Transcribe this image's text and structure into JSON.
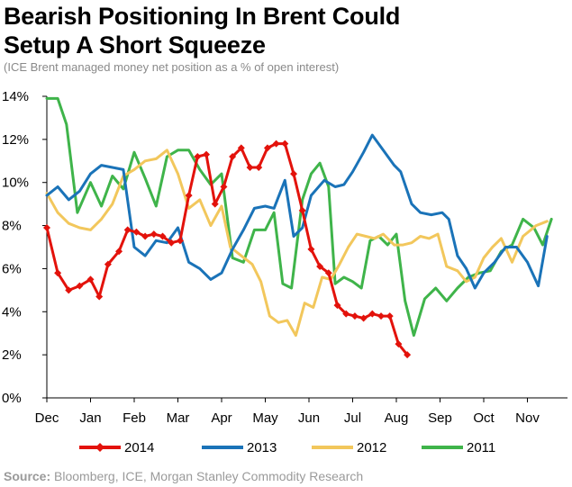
{
  "title_line1": "Bearish Positioning In Brent Could",
  "title_line2": "Setup A Short Squeeze",
  "subtitle": "(ICE Brent managed money net position as a % of open interest)",
  "source_label": "Source:",
  "source_text": " Bloomberg, ICE, Morgan Stanley Commodity Research",
  "chart_data": {
    "type": "line",
    "x_ticks": [
      "Dec",
      "Jan",
      "Feb",
      "Mar",
      "Apr",
      "May",
      "Jun",
      "Jul",
      "Aug",
      "Sep",
      "Oct",
      "Nov"
    ],
    "y_ticks": [
      "0%",
      "2%",
      "4%",
      "6%",
      "8%",
      "10%",
      "12%",
      "14%"
    ],
    "ylim": [
      0,
      14
    ],
    "grid": false,
    "legend_position": "bottom",
    "series": [
      {
        "name": "2014",
        "color": "#e3120b",
        "markers": true,
        "points": [
          [
            0.0,
            7.9
          ],
          [
            0.25,
            5.8
          ],
          [
            0.5,
            5.0
          ],
          [
            0.75,
            5.2
          ],
          [
            1.0,
            5.5
          ],
          [
            1.2,
            4.7
          ],
          [
            1.4,
            6.2
          ],
          [
            1.65,
            6.8
          ],
          [
            1.85,
            7.8
          ],
          [
            2.05,
            7.7
          ],
          [
            2.25,
            7.5
          ],
          [
            2.45,
            7.6
          ],
          [
            2.65,
            7.5
          ],
          [
            2.85,
            7.2
          ],
          [
            3.05,
            7.3
          ],
          [
            3.25,
            9.4
          ],
          [
            3.45,
            11.2
          ],
          [
            3.65,
            11.3
          ],
          [
            3.85,
            9.0
          ],
          [
            4.05,
            9.8
          ],
          [
            4.25,
            11.2
          ],
          [
            4.45,
            11.6
          ],
          [
            4.65,
            10.7
          ],
          [
            4.85,
            10.7
          ],
          [
            5.05,
            11.6
          ],
          [
            5.25,
            11.8
          ],
          [
            5.45,
            11.8
          ],
          [
            5.65,
            10.4
          ],
          [
            5.85,
            8.7
          ],
          [
            6.05,
            6.9
          ],
          [
            6.25,
            6.1
          ],
          [
            6.45,
            5.8
          ],
          [
            6.65,
            4.3
          ],
          [
            6.85,
            3.9
          ],
          [
            7.05,
            3.8
          ],
          [
            7.25,
            3.7
          ],
          [
            7.45,
            3.9
          ],
          [
            7.65,
            3.8
          ],
          [
            7.85,
            3.8
          ],
          [
            8.05,
            2.5
          ],
          [
            8.25,
            2.0
          ]
        ]
      },
      {
        "name": "2013",
        "color": "#1a73b8",
        "markers": false,
        "points": [
          [
            0.0,
            9.4
          ],
          [
            0.25,
            9.8
          ],
          [
            0.5,
            9.2
          ],
          [
            0.75,
            9.6
          ],
          [
            1.0,
            10.4
          ],
          [
            1.25,
            10.8
          ],
          [
            1.5,
            10.7
          ],
          [
            1.75,
            10.6
          ],
          [
            2.0,
            7.0
          ],
          [
            2.25,
            6.6
          ],
          [
            2.5,
            7.3
          ],
          [
            2.75,
            7.2
          ],
          [
            3.0,
            7.9
          ],
          [
            3.25,
            6.3
          ],
          [
            3.5,
            6.0
          ],
          [
            3.75,
            5.5
          ],
          [
            4.0,
            5.8
          ],
          [
            4.25,
            6.9
          ],
          [
            4.5,
            7.8
          ],
          [
            4.75,
            8.8
          ],
          [
            5.0,
            8.9
          ],
          [
            5.2,
            8.8
          ],
          [
            5.45,
            10.1
          ],
          [
            5.65,
            7.5
          ],
          [
            5.85,
            7.9
          ],
          [
            6.05,
            9.4
          ],
          [
            6.35,
            10.1
          ],
          [
            6.6,
            9.8
          ],
          [
            6.8,
            9.9
          ],
          [
            7.0,
            10.5
          ],
          [
            7.25,
            11.4
          ],
          [
            7.45,
            12.2
          ],
          [
            7.7,
            11.5
          ],
          [
            7.95,
            10.8
          ],
          [
            8.1,
            10.5
          ],
          [
            8.35,
            9.0
          ],
          [
            8.55,
            8.6
          ],
          [
            8.8,
            8.5
          ],
          [
            9.05,
            8.6
          ],
          [
            9.2,
            8.3
          ],
          [
            9.4,
            6.6
          ],
          [
            9.6,
            6.0
          ],
          [
            9.8,
            5.1
          ],
          [
            10.0,
            5.8
          ],
          [
            10.25,
            6.3
          ],
          [
            10.5,
            7.0
          ],
          [
            10.75,
            7.0
          ],
          [
            11.0,
            6.3
          ],
          [
            11.25,
            5.2
          ],
          [
            11.45,
            7.5
          ]
        ]
      },
      {
        "name": "2012",
        "color": "#f2c75c",
        "markers": false,
        "points": [
          [
            0.0,
            9.5
          ],
          [
            0.25,
            8.6
          ],
          [
            0.5,
            8.1
          ],
          [
            0.75,
            7.9
          ],
          [
            1.0,
            7.8
          ],
          [
            1.25,
            8.3
          ],
          [
            1.5,
            9.0
          ],
          [
            1.75,
            10.3
          ],
          [
            2.0,
            10.6
          ],
          [
            2.25,
            11.0
          ],
          [
            2.5,
            11.1
          ],
          [
            2.75,
            11.5
          ],
          [
            3.0,
            10.4
          ],
          [
            3.25,
            8.8
          ],
          [
            3.5,
            9.2
          ],
          [
            3.75,
            8.0
          ],
          [
            4.0,
            8.9
          ],
          [
            4.2,
            7.0
          ],
          [
            4.45,
            6.6
          ],
          [
            4.7,
            6.2
          ],
          [
            4.9,
            5.4
          ],
          [
            5.1,
            3.8
          ],
          [
            5.3,
            3.5
          ],
          [
            5.5,
            3.6
          ],
          [
            5.7,
            2.9
          ],
          [
            5.9,
            4.4
          ],
          [
            6.1,
            4.2
          ],
          [
            6.3,
            5.6
          ],
          [
            6.5,
            5.5
          ],
          [
            6.7,
            6.2
          ],
          [
            6.9,
            7.0
          ],
          [
            7.1,
            7.6
          ],
          [
            7.3,
            7.5
          ],
          [
            7.5,
            7.4
          ],
          [
            7.7,
            7.6
          ],
          [
            7.95,
            7.1
          ],
          [
            8.15,
            7.1
          ],
          [
            8.35,
            7.2
          ],
          [
            8.55,
            7.5
          ],
          [
            8.75,
            7.4
          ],
          [
            8.95,
            7.6
          ],
          [
            9.15,
            6.1
          ],
          [
            9.4,
            5.9
          ],
          [
            9.6,
            5.4
          ],
          [
            9.8,
            5.6
          ],
          [
            10.0,
            6.5
          ],
          [
            10.2,
            7.0
          ],
          [
            10.4,
            7.4
          ],
          [
            10.65,
            6.3
          ],
          [
            10.9,
            7.5
          ],
          [
            11.2,
            8.0
          ],
          [
            11.45,
            8.2
          ]
        ]
      },
      {
        "name": "2011",
        "color": "#3fb44a",
        "markers": false,
        "points": [
          [
            0.0,
            13.9
          ],
          [
            0.25,
            13.9
          ],
          [
            0.45,
            12.7
          ],
          [
            0.7,
            8.6
          ],
          [
            1.0,
            10.0
          ],
          [
            1.25,
            8.9
          ],
          [
            1.5,
            10.3
          ],
          [
            1.75,
            9.7
          ],
          [
            2.0,
            11.4
          ],
          [
            2.25,
            10.2
          ],
          [
            2.5,
            8.9
          ],
          [
            2.75,
            11.2
          ],
          [
            3.0,
            11.5
          ],
          [
            3.25,
            11.5
          ],
          [
            3.5,
            10.6
          ],
          [
            3.75,
            9.9
          ],
          [
            4.0,
            10.4
          ],
          [
            4.25,
            6.5
          ],
          [
            4.5,
            6.3
          ],
          [
            4.75,
            7.8
          ],
          [
            5.0,
            7.8
          ],
          [
            5.2,
            8.6
          ],
          [
            5.4,
            5.3
          ],
          [
            5.6,
            5.1
          ],
          [
            5.85,
            9.2
          ],
          [
            6.05,
            10.4
          ],
          [
            6.25,
            10.9
          ],
          [
            6.45,
            9.8
          ],
          [
            6.6,
            5.3
          ],
          [
            6.8,
            5.6
          ],
          [
            7.0,
            5.4
          ],
          [
            7.2,
            5.1
          ],
          [
            7.4,
            7.3
          ],
          [
            7.6,
            7.5
          ],
          [
            7.8,
            7.1
          ],
          [
            8.0,
            7.6
          ],
          [
            8.2,
            4.5
          ],
          [
            8.4,
            2.9
          ],
          [
            8.65,
            4.6
          ],
          [
            8.9,
            5.1
          ],
          [
            9.15,
            4.5
          ],
          [
            9.4,
            5.1
          ],
          [
            9.65,
            5.6
          ],
          [
            9.9,
            5.8
          ],
          [
            10.15,
            5.9
          ],
          [
            10.4,
            6.8
          ],
          [
            10.65,
            7.1
          ],
          [
            10.9,
            8.3
          ],
          [
            11.15,
            7.9
          ],
          [
            11.35,
            7.1
          ],
          [
            11.55,
            8.3
          ]
        ]
      }
    ]
  }
}
